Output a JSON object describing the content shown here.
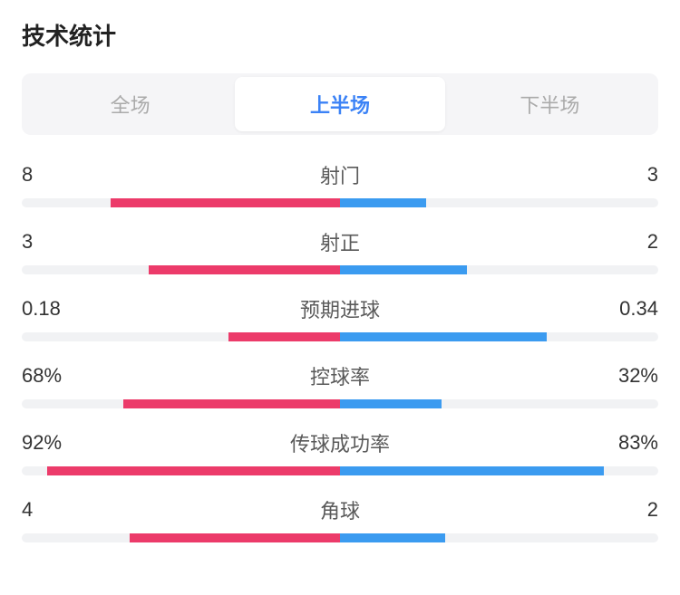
{
  "title": "技术统计",
  "tabs": {
    "items": [
      "全场",
      "上半场",
      "下半场"
    ],
    "activeIndex": 1
  },
  "colors": {
    "left": "#ec3b6a",
    "right": "#3b9bf0",
    "track": "#f1f2f4",
    "tabActiveText": "#3b82f6",
    "tabInactiveText": "#aaaaaa",
    "tabBg": "#f5f5f7",
    "textPrimary": "#333333",
    "textLabel": "#5a5a5a"
  },
  "stats": [
    {
      "label": "射门",
      "leftDisplay": "8",
      "rightDisplay": "3",
      "leftPct": 72,
      "rightPct": 27
    },
    {
      "label": "射正",
      "leftDisplay": "3",
      "rightDisplay": "2",
      "leftPct": 60,
      "rightPct": 40
    },
    {
      "label": "预期进球",
      "leftDisplay": "0.18",
      "rightDisplay": "0.34",
      "leftPct": 35,
      "rightPct": 65
    },
    {
      "label": "控球率",
      "leftDisplay": "68%",
      "rightDisplay": "32%",
      "leftPct": 68,
      "rightPct": 32
    },
    {
      "label": "传球成功率",
      "leftDisplay": "92%",
      "rightDisplay": "83%",
      "leftPct": 92,
      "rightPct": 83
    },
    {
      "label": "角球",
      "leftDisplay": "4",
      "rightDisplay": "2",
      "leftPct": 66,
      "rightPct": 33
    }
  ]
}
